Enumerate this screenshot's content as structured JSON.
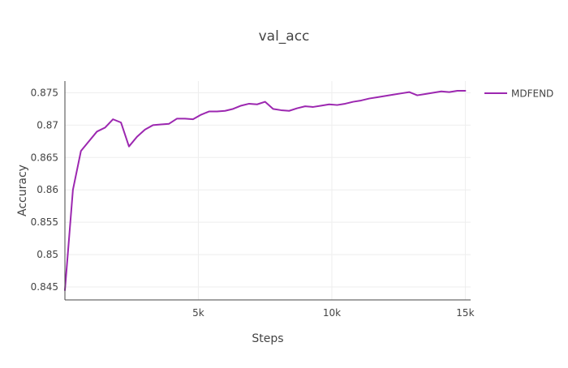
{
  "chart_data": {
    "type": "line",
    "title": "val_acc",
    "xlabel": "Steps",
    "ylabel": "Accuracy",
    "xlim": [
      0,
      15200
    ],
    "ylim": [
      0.843,
      0.8768
    ],
    "x_ticks": [
      {
        "value": 5000,
        "label": "5k"
      },
      {
        "value": 10000,
        "label": "10k"
      },
      {
        "value": 15000,
        "label": "15k"
      }
    ],
    "y_ticks": [
      {
        "value": 0.845,
        "label": "0.845"
      },
      {
        "value": 0.85,
        "label": "0.85"
      },
      {
        "value": 0.855,
        "label": "0.855"
      },
      {
        "value": 0.86,
        "label": "0.86"
      },
      {
        "value": 0.865,
        "label": "0.865"
      },
      {
        "value": 0.87,
        "label": "0.87"
      },
      {
        "value": 0.875,
        "label": "0.875"
      }
    ],
    "grid": true,
    "legend_position": "top-right",
    "series": [
      {
        "name": "MDFEND",
        "color": "#9c27b0",
        "x": [
          0,
          300,
          600,
          900,
          1200,
          1500,
          1800,
          2100,
          2400,
          2700,
          3000,
          3300,
          3600,
          3900,
          4200,
          4500,
          4800,
          5100,
          5400,
          5700,
          6000,
          6300,
          6600,
          6900,
          7200,
          7500,
          7800,
          8100,
          8400,
          8700,
          9000,
          9300,
          9600,
          9900,
          10200,
          10500,
          10800,
          11100,
          11400,
          11700,
          12000,
          12300,
          12600,
          12900,
          13200,
          13500,
          13800,
          14100,
          14400,
          14700,
          15000
        ],
        "y": [
          0.8445,
          0.86,
          0.866,
          0.8675,
          0.869,
          0.8696,
          0.8709,
          0.8704,
          0.8667,
          0.8682,
          0.8693,
          0.87,
          0.8701,
          0.8702,
          0.871,
          0.871,
          0.8709,
          0.8716,
          0.8721,
          0.8721,
          0.8722,
          0.8725,
          0.873,
          0.8733,
          0.8732,
          0.8736,
          0.8725,
          0.8723,
          0.8722,
          0.8726,
          0.8729,
          0.8728,
          0.873,
          0.8732,
          0.8731,
          0.8733,
          0.8736,
          0.8738,
          0.8741,
          0.8743,
          0.8745,
          0.8747,
          0.8749,
          0.8751,
          0.8746,
          0.8748,
          0.875,
          0.8752,
          0.8751,
          0.8753,
          0.8753
        ]
      }
    ]
  }
}
